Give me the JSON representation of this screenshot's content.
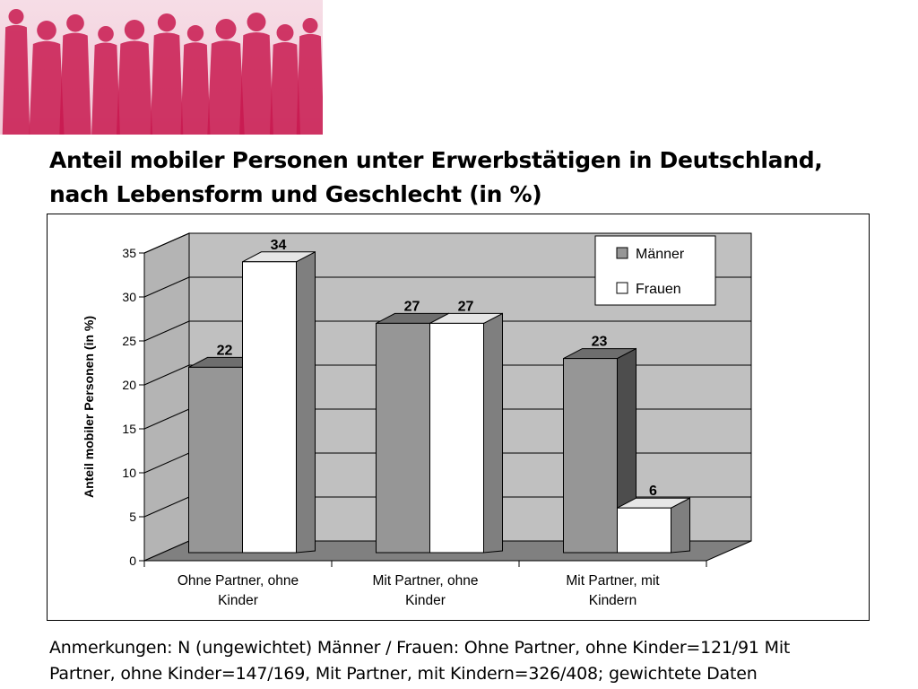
{
  "title_lines": [
    "Anteil mobiler Personen unter Erwerbstätigen in Deutschland,",
    "nach Lebensform und Geschlecht (in %)"
  ],
  "footnote_lines": [
    "Anmerkungen: N (ungewichtet) Männer / Frauen: Ohne Partner, ohne Kinder=121/91 Mit",
    "Partner, ohne Kinder=147/169, Mit Partner, mit Kindern=326/408; gewichtete Daten"
  ],
  "banner": {
    "image": "crowd-silhouettes-image",
    "color": "#c8194f"
  },
  "chart_data": {
    "type": "bar",
    "style": "3d-clustered-column",
    "categories": [
      [
        "Ohne Partner, ohne",
        "Kinder"
      ],
      [
        "Mit Partner, ohne",
        "Kinder"
      ],
      [
        "Mit Partner, mit",
        "Kindern"
      ]
    ],
    "series": [
      {
        "name": "Männer",
        "values": [
          22,
          27,
          23
        ],
        "color": "#969696"
      },
      {
        "name": "Frauen",
        "values": [
          34,
          27,
          6
        ],
        "color": "#ffffff"
      }
    ],
    "ylabel": "Anteil mobiler Personen (in %)",
    "ylim": [
      0,
      35
    ],
    "yticks": [
      0,
      5,
      10,
      15,
      20,
      25,
      30,
      35
    ],
    "grid": true,
    "legend": "top-right",
    "wall_color": "#c0c0c0",
    "floor_color": "#808080"
  }
}
